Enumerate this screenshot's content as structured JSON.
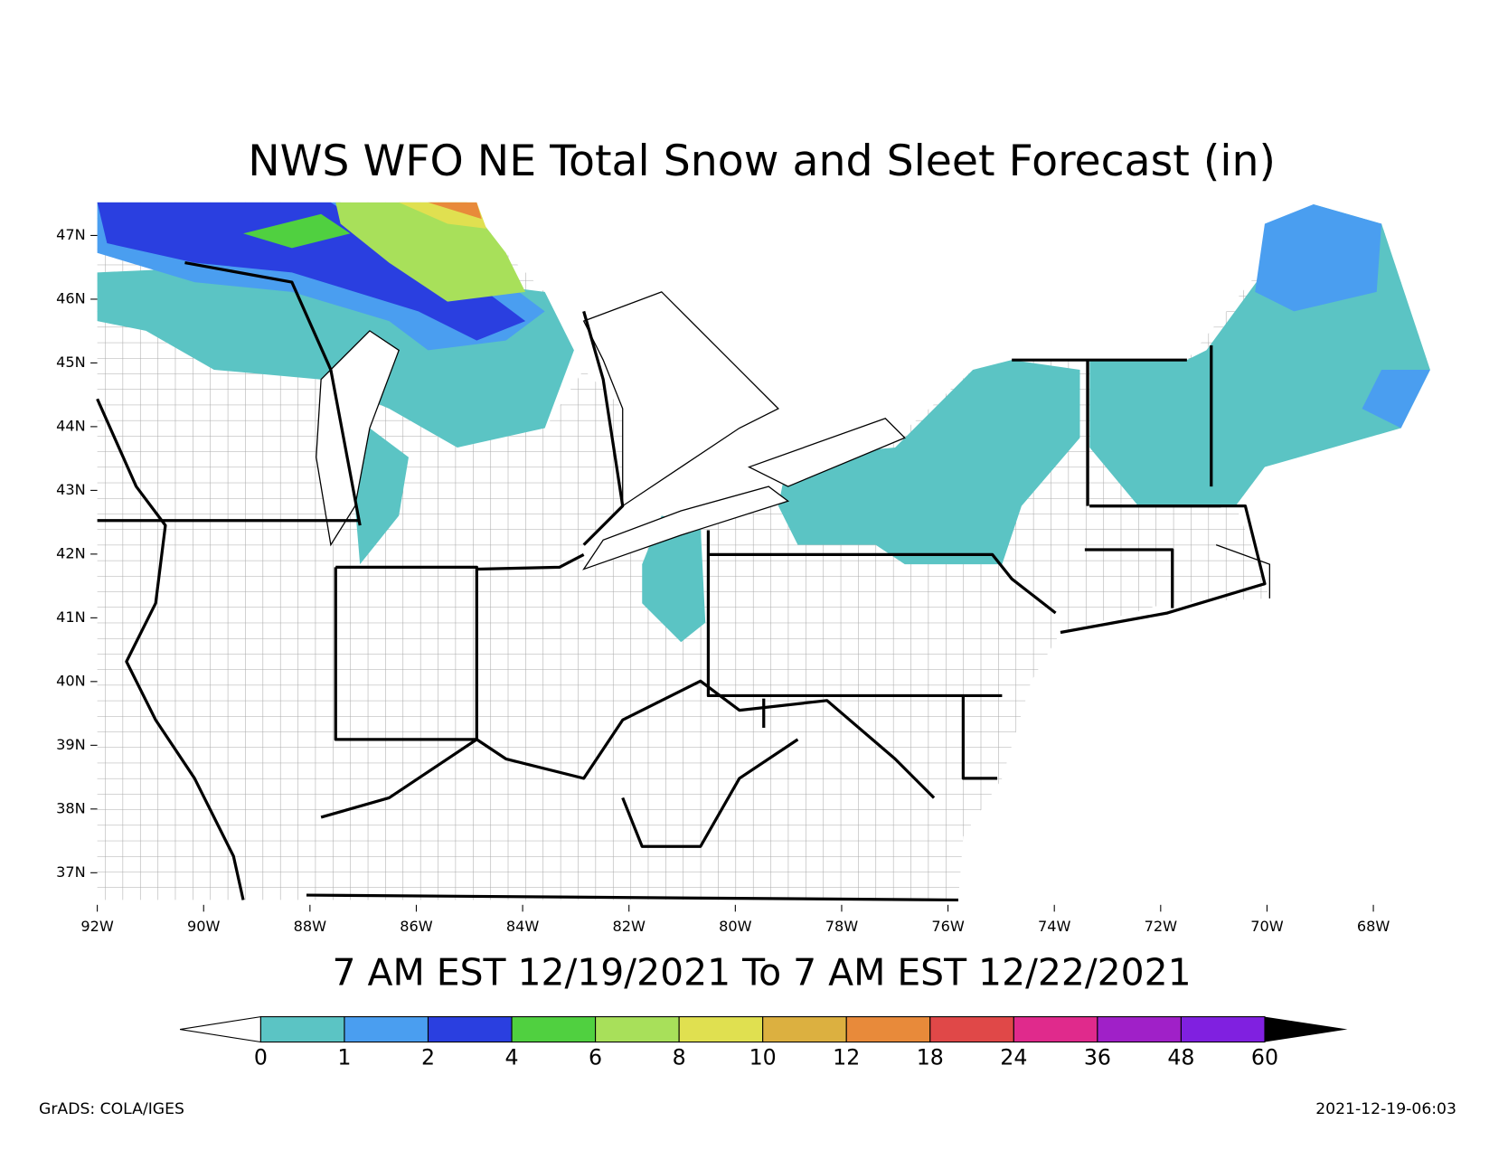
{
  "title": "NWS WFO NE Total Snow and Sleet Forecast (in)",
  "subtitle": "7 AM EST 12/19/2021 To 7 AM EST 12/22/2021",
  "lat_labels": [
    "47N",
    "46N",
    "45N",
    "44N",
    "43N",
    "42N",
    "41N",
    "40N",
    "39N",
    "38N",
    "37N"
  ],
  "lon_labels": [
    "92W",
    "90W",
    "88W",
    "86W",
    "84W",
    "82W",
    "80W",
    "78W",
    "76W",
    "74W",
    "72W",
    "70W",
    "68W"
  ],
  "legend": {
    "labels": [
      "0",
      "1",
      "2",
      "4",
      "6",
      "8",
      "10",
      "12",
      "18",
      "24",
      "36",
      "48",
      "60"
    ],
    "colors": [
      "#5bc4c4",
      "#4a9ef0",
      "#2a3fe0",
      "#50d040",
      "#a8e05a",
      "#e0e050",
      "#dcb040",
      "#e88a3a",
      "#e04848",
      "#e02a8c",
      "#a020c8",
      "#8020e0"
    ]
  },
  "footer_left": "GrADS: COLA/IGES",
  "footer_right": "2021-12-19-06:03"
}
